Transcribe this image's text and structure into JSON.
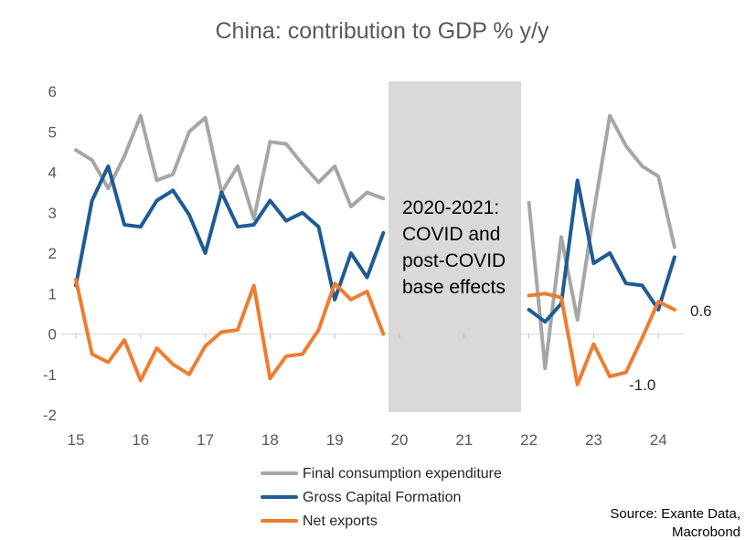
{
  "chart_data": {
    "type": "line",
    "title": "China: contribution to GDP % y/y",
    "xlabel": "",
    "ylabel": "",
    "ylim": [
      -2,
      6
    ],
    "yticks": [
      6,
      5,
      4,
      3,
      2,
      1,
      0,
      -1,
      -2
    ],
    "xlim": [
      15,
      24.33
    ],
    "xticks": [
      "15",
      "16",
      "17",
      "18",
      "19",
      "20",
      "21",
      "22",
      "23",
      "24"
    ],
    "grid": false,
    "legend_position": "bottom",
    "shaded_region": {
      "from": 19.83,
      "to": 21.88,
      "label_lines": [
        "2020-2021:",
        "COVID and",
        "post-COVID",
        "base effects"
      ],
      "color": "#d9d9d9"
    },
    "end_labels": [
      "0.6",
      "-1.0"
    ],
    "series": [
      {
        "name": "Final consumption expenditure",
        "color": "#a6a6a6",
        "segments": [
          {
            "x": [
              15.0,
              15.25,
              15.5,
              15.75,
              16.0,
              16.25,
              16.5,
              16.75,
              17.0,
              17.25,
              17.5,
              17.75,
              18.0,
              18.25,
              18.5,
              18.75,
              19.0,
              19.25,
              19.5,
              19.75
            ],
            "y": [
              4.55,
              4.3,
              3.6,
              4.4,
              5.4,
              3.8,
              3.95,
              5.0,
              5.35,
              3.5,
              4.15,
              2.85,
              4.75,
              4.7,
              4.2,
              3.75,
              4.15,
              3.15,
              3.5,
              3.35
            ]
          },
          {
            "x": [
              22.0,
              22.25,
              22.5,
              22.75,
              23.0,
              23.25,
              23.5,
              23.75,
              24.0,
              24.25
            ],
            "y": [
              3.25,
              -0.85,
              2.4,
              0.35,
              3.0,
              5.4,
              4.65,
              4.15,
              3.9,
              2.15
            ]
          }
        ]
      },
      {
        "name": "Gross Capital Formation",
        "color": "#1f5b94",
        "segments": [
          {
            "x": [
              15.0,
              15.25,
              15.5,
              15.75,
              16.0,
              16.25,
              16.5,
              16.75,
              17.0,
              17.25,
              17.5,
              17.75,
              18.0,
              18.25,
              18.5,
              18.75,
              19.0,
              19.25,
              19.5,
              19.75
            ],
            "y": [
              1.2,
              3.3,
              4.15,
              2.7,
              2.65,
              3.3,
              3.55,
              2.95,
              2.0,
              3.5,
              2.65,
              2.7,
              3.3,
              2.8,
              3.0,
              2.65,
              0.85,
              2.0,
              1.4,
              2.5
            ]
          },
          {
            "x": [
              22.0,
              22.25,
              22.5,
              22.75,
              23.0,
              23.25,
              23.5,
              23.75,
              24.0,
              24.25
            ],
            "y": [
              0.6,
              0.3,
              0.75,
              3.8,
              1.75,
              2.0,
              1.25,
              1.2,
              0.6,
              1.9
            ]
          }
        ]
      },
      {
        "name": "Net exports",
        "color": "#ed7d31",
        "segments": [
          {
            "x": [
              15.0,
              15.25,
              15.5,
              15.75,
              16.0,
              16.25,
              16.5,
              16.75,
              17.0,
              17.25,
              17.5,
              17.75,
              18.0,
              18.25,
              18.5,
              18.75,
              19.0,
              19.25,
              19.5,
              19.75
            ],
            "y": [
              1.35,
              -0.5,
              -0.7,
              -0.15,
              -1.15,
              -0.35,
              -0.75,
              -1.0,
              -0.3,
              0.05,
              0.1,
              1.2,
              -1.1,
              -0.55,
              -0.5,
              0.1,
              1.25,
              0.85,
              1.05,
              0.0
            ]
          },
          {
            "x": [
              22.0,
              22.25,
              22.5,
              22.75,
              23.0,
              23.25,
              23.5,
              23.75,
              24.0,
              24.25
            ],
            "y": [
              0.95,
              1.0,
              0.9,
              -1.25,
              -0.25,
              -1.05,
              -0.95,
              -0.1,
              0.8,
              0.6
            ]
          }
        ]
      }
    ]
  },
  "source": [
    "Source: Exante Data,",
    "Macrobond"
  ]
}
